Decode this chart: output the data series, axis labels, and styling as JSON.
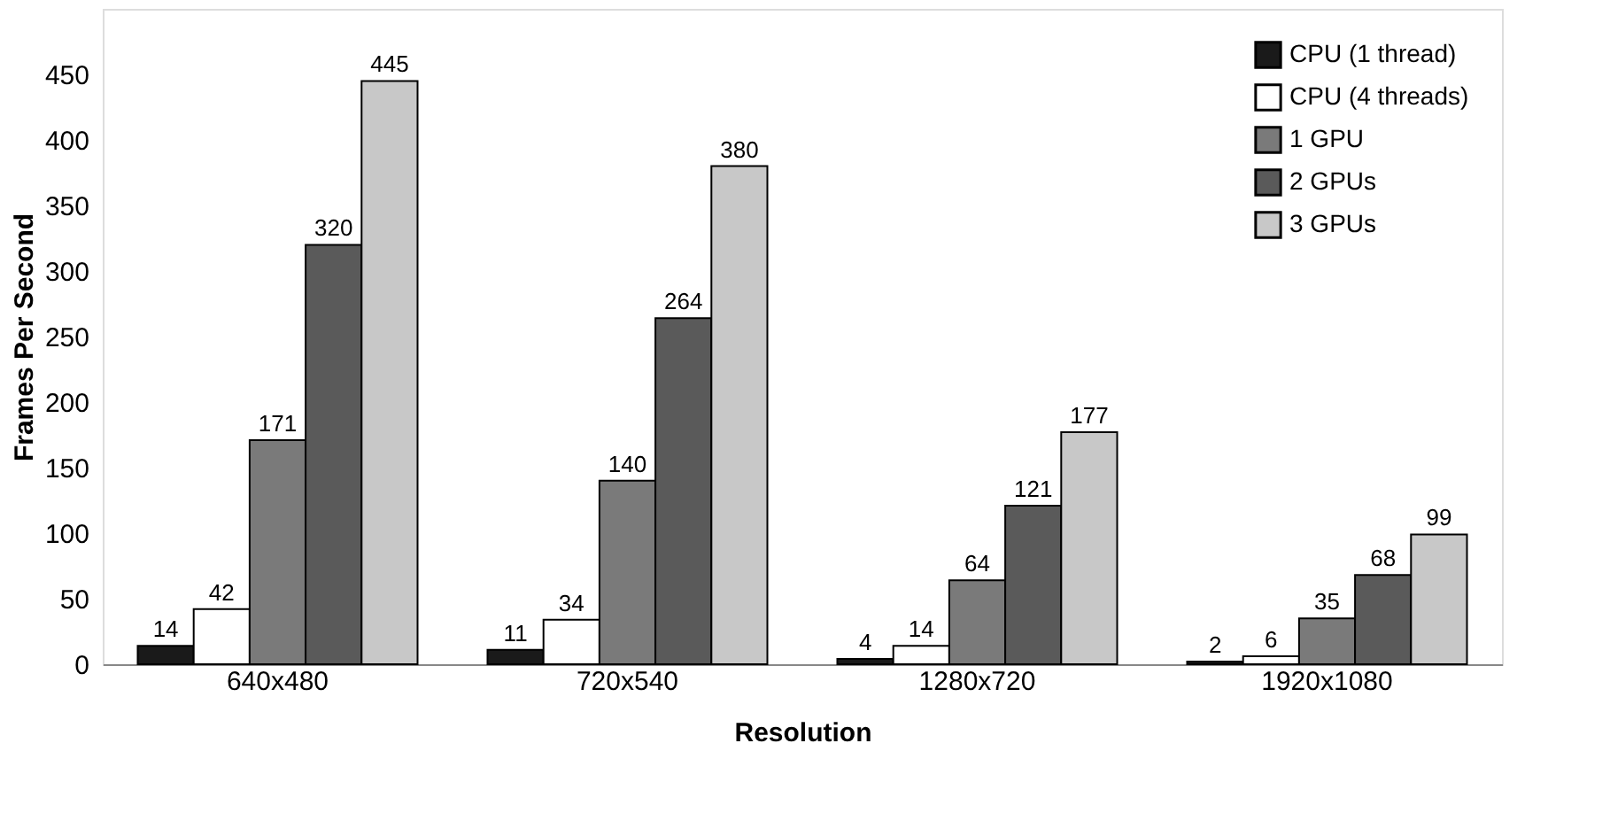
{
  "chart_data": {
    "type": "bar",
    "xlabel": "Resolution",
    "ylabel": "Frames Per Second",
    "categories": [
      "640x480",
      "720x540",
      "1280x720",
      "1920x1080"
    ],
    "series": [
      {
        "name": "CPU (1 thread)",
        "color": "#1a1a1a",
        "values": [
          14,
          11,
          4,
          2
        ]
      },
      {
        "name": "CPU (4 threads)",
        "color": "#ffffff",
        "values": [
          42,
          34,
          14,
          6
        ]
      },
      {
        "name": "1 GPU",
        "color": "#7a7a7a",
        "values": [
          171,
          140,
          64,
          35
        ]
      },
      {
        "name": "2 GPUs",
        "color": "#5a5a5a",
        "values": [
          320,
          264,
          121,
          68
        ]
      },
      {
        "name": "3 GPUs",
        "color": "#c8c8c8",
        "values": [
          445,
          380,
          177,
          99
        ]
      }
    ],
    "ylim": [
      0,
      500
    ],
    "yticks": [
      0,
      50,
      100,
      150,
      200,
      250,
      300,
      350,
      400,
      450
    ],
    "grid": false,
    "legend": "top right",
    "data_labels": true
  }
}
